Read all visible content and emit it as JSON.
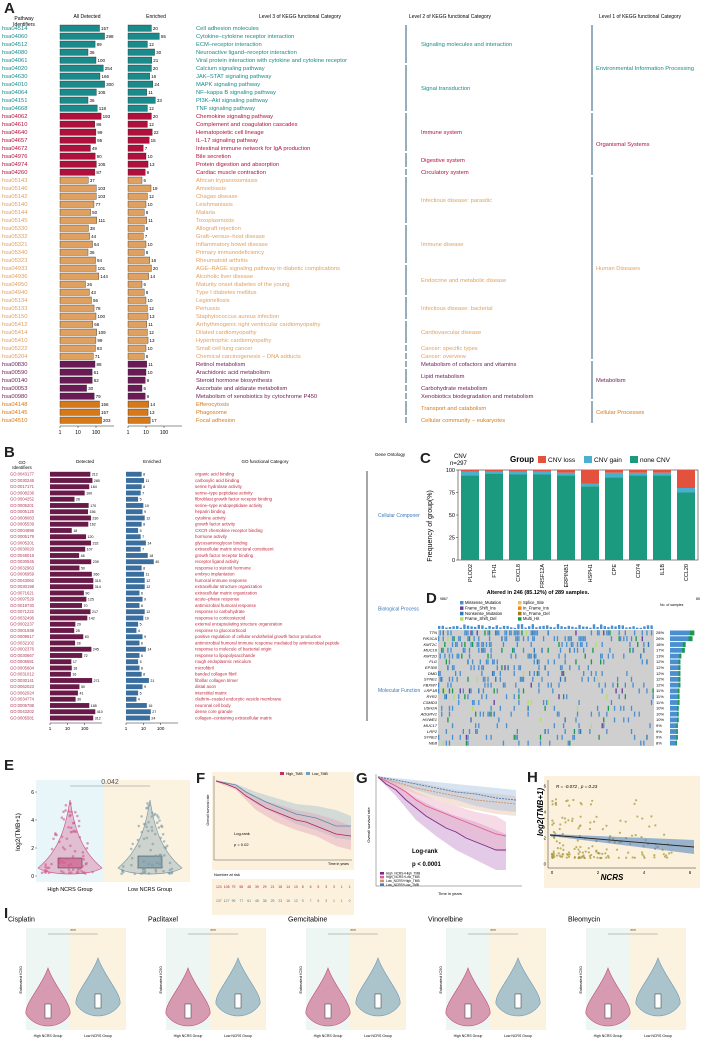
{
  "panel_labels": {
    "A": "A",
    "B": "B",
    "C": "C",
    "D": "D",
    "E": "E",
    "F": "F",
    "G": "G",
    "H": "H",
    "I": "I"
  },
  "panelA": {
    "h_ids": "Pathway\nIdentifiers",
    "h_all": "All Detected",
    "h_enr": "Enriched",
    "h_l3": "Level 3 of KEGG functional Category",
    "h_l2": "Level 2 of KEGG functional Category",
    "h_l1": "Level 1 of KEGG functional Category",
    "axis_ticks": [
      "1",
      "10",
      "100",
      "1",
      "10",
      "100"
    ],
    "colors": {
      "env": "#1a8a8a",
      "org": "#b0103c",
      "hum": "#e0a060",
      "met": "#6a1a55",
      "cell": "#d5791a"
    },
    "rows": [
      {
        "id": "hsa04514",
        "all": 157,
        "enr": 20,
        "name": "Cell adhesion molecules",
        "g": "env"
      },
      {
        "id": "hsa04060",
        "all": 298,
        "enr": 55,
        "name": "Cytokine–cytokine receptor interaction",
        "g": "env"
      },
      {
        "id": "hsa04512",
        "all": 89,
        "enr": 12,
        "name": "ECM–receptor interaction",
        "g": "env"
      },
      {
        "id": "hsa04080",
        "all": 36,
        "enr": 30,
        "name": "Neuroactive ligand–receptor interaction",
        "g": "env"
      },
      {
        "id": "hsa04061",
        "all": 100,
        "enr": 21,
        "name": "Viral protein interaction with cytokine and cytokine receptor",
        "g": "env"
      },
      {
        "id": "hsa04020",
        "all": 254,
        "enr": 20,
        "name": "Calcium signaling pathway",
        "g": "env"
      },
      {
        "id": "hsa04630",
        "all": 166,
        "enr": 16,
        "name": "JAK–STAT signaling pathway",
        "g": "env"
      },
      {
        "id": "hsa04010",
        "all": 300,
        "enr": 24,
        "name": "MAPK signaling pathway",
        "g": "env"
      },
      {
        "id": "hsa04064",
        "all": 105,
        "enr": 11,
        "name": "NF–kappa B signaling pathway",
        "g": "env"
      },
      {
        "id": "hsa04151",
        "all": 36,
        "enr": 33,
        "name": "PI3K–Akt signaling pathway",
        "g": "env"
      },
      {
        "id": "hsa04668",
        "all": 118,
        "enr": 12,
        "name": "TNF signaling pathway",
        "g": "env"
      },
      {
        "id": "hsa04062",
        "all": 193,
        "enr": 20,
        "name": "Chemokine signaling pathway",
        "g": "org"
      },
      {
        "id": "hsa04610",
        "all": 86,
        "enr": 12,
        "name": "Complement and coagulation cascades",
        "g": "org"
      },
      {
        "id": "hsa04640",
        "all": 99,
        "enr": 22,
        "name": "Hematopoietic cell lineage",
        "g": "org"
      },
      {
        "id": "hsa04657",
        "all": 95,
        "enr": 15,
        "name": "IL–17 signaling pathway",
        "g": "org"
      },
      {
        "id": "hsa04672",
        "all": 49,
        "enr": 7,
        "name": "Intestinal immune network for IgA production",
        "g": "org"
      },
      {
        "id": "hsa04976",
        "all": 90,
        "enr": 10,
        "name": "Bile secretion",
        "g": "org"
      },
      {
        "id": "hsa04974",
        "all": 105,
        "enr": 13,
        "name": "Protein digestion and absorption",
        "g": "org"
      },
      {
        "id": "hsa04260",
        "all": 87,
        "enr": 9,
        "name": "Cardiac muscle contraction",
        "g": "org"
      },
      {
        "id": "hsa05143",
        "all": 37,
        "enr": 6,
        "name": "African trypanosomiasis",
        "g": "hum"
      },
      {
        "id": "hsa05146",
        "all": 103,
        "enr": 19,
        "name": "Amoebiasis",
        "g": "hum"
      },
      {
        "id": "hsa05142",
        "all": 103,
        "enr": 12,
        "name": "Chagas disease",
        "g": "hum"
      },
      {
        "id": "hsa05140",
        "all": 77,
        "enr": 10,
        "name": "Leishmaniasis",
        "g": "hum"
      },
      {
        "id": "hsa05144",
        "all": 50,
        "enr": 8,
        "name": "Malaria",
        "g": "hum"
      },
      {
        "id": "hsa05145",
        "all": 111,
        "enr": 11,
        "name": "Toxoplasmosis",
        "g": "hum"
      },
      {
        "id": "hsa05330",
        "all": 38,
        "enr": 8,
        "name": "Allograft rejection",
        "g": "hum"
      },
      {
        "id": "hsa05332",
        "all": 44,
        "enr": 7,
        "name": "Graft–versus–host disease",
        "g": "hum"
      },
      {
        "id": "hsa05321",
        "all": 64,
        "enr": 10,
        "name": "Inflammatory bowel disease",
        "g": "hum"
      },
      {
        "id": "hsa05340",
        "all": 36,
        "enr": 8,
        "name": "Primary immunodeficiency",
        "g": "hum"
      },
      {
        "id": "hsa05323",
        "all": 94,
        "enr": 16,
        "name": "Rheumatoid arthritis",
        "g": "hum"
      },
      {
        "id": "hsa04933",
        "all": 101,
        "enr": 20,
        "name": "AGE–RAGE signaling pathway in diabetic complications",
        "g": "hum"
      },
      {
        "id": "hsa04936",
        "all": 144,
        "enr": 14,
        "name": "Alcoholic liver disease",
        "g": "hum"
      },
      {
        "id": "hsa04950",
        "all": 26,
        "enr": 6,
        "name": "Maturity onset diabetes of the young",
        "g": "hum"
      },
      {
        "id": "hsa04940",
        "all": 43,
        "enr": 8,
        "name": "Type I diabetes mellitus",
        "g": "hum"
      },
      {
        "id": "hsa05134",
        "all": 56,
        "enr": 10,
        "name": "Legionellosis",
        "g": "hum"
      },
      {
        "id": "hsa05133",
        "all": 78,
        "enr": 12,
        "name": "Pertussis",
        "g": "hum"
      },
      {
        "id": "hsa05150",
        "all": 100,
        "enr": 13,
        "name": "Staphylococcus aureus infection",
        "g": "hum"
      },
      {
        "id": "hsa05412",
        "all": 66,
        "enr": 11,
        "name": "Arrhythmogenic right ventricular cardiomyopathy",
        "g": "hum"
      },
      {
        "id": "hsa05414",
        "all": 109,
        "enr": 12,
        "name": "Dilated cardiomyopathy",
        "g": "hum"
      },
      {
        "id": "hsa05410",
        "all": 99,
        "enr": 13,
        "name": "Hypertrophic cardiomyopathy",
        "g": "hum"
      },
      {
        "id": "hsa05222",
        "all": 93,
        "enr": 10,
        "name": "Small cell lung cancer",
        "g": "hum"
      },
      {
        "id": "hsa05204",
        "all": 71,
        "enr": 8,
        "name": "Chemical carcinogenesis – DNA adducts",
        "g": "hum"
      },
      {
        "id": "hsa00830",
        "all": 88,
        "enr": 11,
        "name": "Retinol metabolism",
        "g": "met"
      },
      {
        "id": "hsa00590",
        "all": 61,
        "enr": 10,
        "name": "Arachidonic acid metabolism",
        "g": "met"
      },
      {
        "id": "hsa00140",
        "all": 62,
        "enr": 9,
        "name": "Steroid hormone biosynthesis",
        "g": "met"
      },
      {
        "id": "hsa00053",
        "all": 30,
        "enr": 6,
        "name": "Ascorbate and aldarate metabolism",
        "g": "met"
      },
      {
        "id": "hsa00980",
        "all": 79,
        "enr": 9,
        "name": "Metabolism of xenobiotics by cytochrome P450",
        "g": "met"
      },
      {
        "id": "hsa04148",
        "all": 156,
        "enr": 14,
        "name": "Efferocytosis",
        "g": "cell"
      },
      {
        "id": "hsa04145",
        "all": 157,
        "enr": 13,
        "name": "Phagosome",
        "g": "cell"
      },
      {
        "id": "hsa04510",
        "all": 203,
        "enr": 17,
        "name": "Focal adhesion",
        "g": "cell"
      }
    ],
    "level2": [
      {
        "label": "Signaling molecules and interaction",
        "from": 0,
        "to": 4,
        "g": "env"
      },
      {
        "label": "Signal transduction",
        "from": 5,
        "to": 10,
        "g": "env"
      },
      {
        "label": "Immune system",
        "from": 11,
        "to": 15,
        "g": "org"
      },
      {
        "label": "Digestive system",
        "from": 16,
        "to": 17,
        "g": "org"
      },
      {
        "label": "Circulatory system",
        "from": 18,
        "to": 18,
        "g": "org"
      },
      {
        "label": "Infectious disease: parasitic",
        "from": 19,
        "to": 24,
        "g": "hum"
      },
      {
        "label": "Immune disease",
        "from": 25,
        "to": 29,
        "g": "hum"
      },
      {
        "label": "Endocrine and metabolic disease",
        "from": 30,
        "to": 33,
        "g": "hum"
      },
      {
        "label": "Infectious disease: bacterial",
        "from": 34,
        "to": 36,
        "g": "hum"
      },
      {
        "label": "Cardiovascular disease",
        "from": 37,
        "to": 39,
        "g": "hum"
      },
      {
        "label": "Cancer: specific types",
        "from": 40,
        "to": 40,
        "g": "hum"
      },
      {
        "label": "Cancer: overview",
        "from": 41,
        "to": 41,
        "g": "hum"
      },
      {
        "label": "Metabolism of cofactors and vitamins",
        "from": 42,
        "to": 42,
        "g": "met"
      },
      {
        "label": "Lipid metabolism",
        "from": 43,
        "to": 44,
        "g": "met"
      },
      {
        "label": "Carbohydrate metabolism",
        "from": 45,
        "to": 45,
        "g": "met"
      },
      {
        "label": "Xenobiotics biodegradation and metabolism",
        "from": 46,
        "to": 46,
        "g": "met"
      },
      {
        "label": "Transport and catabolism",
        "from": 47,
        "to": 48,
        "g": "cell"
      },
      {
        "label": "Cellular community – eukaryotes",
        "from": 49,
        "to": 49,
        "g": "cell"
      }
    ],
    "level1": [
      {
        "label": "Environmental Information Processing",
        "from": 0,
        "to": 10,
        "g": "env"
      },
      {
        "label": "Organismal Systems",
        "from": 11,
        "to": 18,
        "g": "org"
      },
      {
        "label": "Human Diseases",
        "from": 19,
        "to": 41,
        "g": "hum"
      },
      {
        "label": "Metabolism",
        "from": 42,
        "to": 46,
        "g": "met"
      },
      {
        "label": "Cellular Processes",
        "from": 47,
        "to": 49,
        "g": "cell"
      }
    ]
  },
  "panelB": {
    "h_ids": "GO\nIdentifiers",
    "h_det": "Detected",
    "h_enr": "Enriched",
    "h_cat": "GO functional Category",
    "h_onto": "Gene Ontology",
    "axis_ticks": [
      "1",
      "10",
      "100",
      "1",
      "10",
      "100"
    ],
    "colors": {
      "bar1": "#6a1a48",
      "bar2": "#3a6e9e",
      "text": "#c0283c",
      "onto": "#3a7ab8"
    },
    "ids": [
      "GO:0043177",
      "GO:0030246",
      "GO:0017171",
      "GO:0008236",
      "GO:0004252",
      "GO:0005201",
      "GO:0005125",
      "GO:0008083",
      "GO:0005539",
      "GO:0004896",
      "GO:0005179",
      "GO:0005201",
      "GO:0030020",
      "GO:0048018",
      "GO:0030545",
      "GO:0032963",
      "GO:0006959",
      "GO:0043062",
      "GO:0030198",
      "GO:0071621",
      "GO:0097529",
      "GO:0019730",
      "GO:0071222",
      "GO:0032496",
      "GO:0002237",
      "GO:0001938",
      "GO:0009617",
      "GO:0032102",
      "GO:0002376",
      "GO:0030667",
      "GO:0005581",
      "GO:0005604",
      "GO:0031012",
      "GO:0030141",
      "GO:0062023",
      "GO:0062024",
      "GO:0034774",
      "GO:0005788",
      "GO:0043202",
      "GO:0005581"
    ],
    "det": [
      212,
      280,
      184,
      100,
      26,
      170,
      156,
      230,
      162,
      18,
      120,
      232,
      107,
      48,
      239,
      50,
      260,
      315,
      314,
      90,
      125,
      70,
      217,
      142,
      29,
      25,
      83,
      28,
      245,
      72,
      17,
      18,
      16,
      271,
      50,
      41,
      30,
      185,
      410,
      312
    ],
    "enr": [
      8,
      11,
      8,
      7,
      5,
      10,
      9,
      12,
      8,
      5,
      7,
      14,
      7,
      18,
      40,
      8,
      11,
      12,
      12,
      6,
      9,
      6,
      12,
      10,
      5,
      4,
      9,
      6,
      14,
      6,
      5,
      6,
      8,
      21,
      9,
      5,
      4,
      16,
      27,
      24
    ],
    "names": [
      "organic acid binding",
      "carboxylic acid binding",
      "serine hydrolase activity",
      "serine–type peptidase activity",
      "fibroblast growth factor receptor binding",
      "serine–type endopeptidase activity",
      "heparin binding",
      "cytokine activity",
      "growth factor activity",
      "CXCR chemokine receptor binding",
      "hormone activity",
      "glycosaminoglycan binding",
      "extracellular matrix structural constituent",
      "growth factor receptor binding",
      "receptor ligand activity",
      "response to steroid hormone",
      "embryo implantation",
      "humoral immune response",
      "extracellular structure organization",
      "extracellular matrix organization",
      "acute–phase response",
      "antimicrobial humoral response",
      "response to carbohydrate",
      "response to corticosteroid",
      "external encapsulating structure organization",
      "response to glucocorticoid",
      "positive regulation of cellular endothelial growth factor production",
      "antimicrobial humoral immune response mediated by antimicrobial peptide",
      "response to molecule of bacterial origin",
      "response to lipopolysaccharide",
      "rough endoplasmic reticulum",
      "microfibril",
      "banded collagen fibril",
      "fibrillar collagen trimer",
      "distal axon",
      "interstitial matrix",
      "clathrin–coated endocytic vesicle membrane",
      "neuronal cell body",
      "dense core granule",
      "collagen–containing extracellular matrix"
    ],
    "ontology": [
      {
        "label": "Cellular Component",
        "from": 0,
        "to": 13
      },
      {
        "label": "Biological Process",
        "from": 14,
        "to": 29
      },
      {
        "label": "Molecular Function",
        "from": 30,
        "to": 39
      }
    ]
  },
  "panelC": {
    "cnv_label": "CNV",
    "n_label": "n=297",
    "legend_title": "Group",
    "legend": [
      "CNV loss",
      "CNV gain",
      "none CNV"
    ],
    "colors": [
      "#e4523e",
      "#4ab0d0",
      "#1c9a80"
    ],
    "ylabel": "Frequency of group(%)",
    "yticks": [
      "100",
      "75",
      "50",
      "25",
      "0"
    ],
    "chart_data": {
      "type": "bar",
      "categories": [
        "PLOD2",
        "FTH1",
        "CXCL8",
        "TNFRSF12A",
        "SERPINB1",
        "HSPH1",
        "CPE",
        "CD74",
        "IL1B",
        "CCL20"
      ],
      "series": [
        {
          "name": "none CNV",
          "values": [
            94,
            96,
            95,
            95,
            94,
            82,
            92,
            94,
            94,
            75
          ]
        },
        {
          "name": "CNV gain",
          "values": [
            4,
            2,
            3,
            3,
            3,
            3,
            5,
            3,
            3,
            5
          ]
        },
        {
          "name": "CNV loss",
          "values": [
            2,
            2,
            2,
            2,
            3,
            15,
            3,
            3,
            3,
            20
          ]
        }
      ],
      "ylim": [
        0,
        100
      ]
    }
  },
  "panelD": {
    "title": "Altered in 246 (85.12%) of 289 samples.",
    "tmb_label": "9867",
    "no_samples": "No. of samples",
    "axis_max": "85",
    "legend": [
      "Missense_Mutation",
      "Splice_Site",
      "Frame_Shift_Ins",
      "In_Frame_Ins",
      "Nonsense_Mutation",
      "In_Frame_Del",
      "Frame_Shift_Del",
      "Multi_Hit"
    ],
    "legend_colors": [
      "#4a90d0",
      "#e8c45a",
      "#6a3d9a",
      "#ff7f00",
      "#2c7bb6",
      "#a6761d",
      "#b3de69",
      "#1a9a48"
    ],
    "genes": [
      "TTN",
      "PIK3CA",
      "KMT2C",
      "MUC16",
      "KMT2D",
      "FLG",
      "EP300",
      "DMD",
      "SYNE1",
      "FBXW7",
      "LRP1B",
      "RYR2",
      "CSMD3",
      "USH2A",
      "ADGRV1",
      "HUWE1",
      "MUC17",
      "LRP2",
      "SYNE2",
      "NEB"
    ],
    "pct": [
      "28%",
      "26%",
      "18%",
      "17%",
      "13%",
      "12%",
      "12%",
      "12%",
      "12%",
      "12%",
      "11%",
      "11%",
      "11%",
      "10%",
      "10%",
      "10%",
      "9%",
      "9%",
      "9%",
      "8%"
    ],
    "pct_values": [
      28,
      26,
      18,
      17,
      13,
      12,
      12,
      12,
      12,
      12,
      11,
      11,
      11,
      10,
      10,
      10,
      9,
      9,
      9,
      8
    ]
  },
  "panelE": {
    "pvalue": "0.042",
    "ylabel": "log2(TMB+1)",
    "groups": [
      "High NCRS Group",
      "Low NCRS Group"
    ],
    "yticks": [
      "6",
      "4",
      "2",
      "0"
    ],
    "colors": [
      "#d05a8a",
      "#7a9aa8"
    ],
    "bg": [
      "#e8f6fa",
      "#fbf3e0"
    ]
  },
  "panelF": {
    "legend": [
      "High_TMB",
      "Low_TMB"
    ],
    "ylabel": "Overall survival rate",
    "xlabel": "Time in years",
    "logrank": "Log-rank",
    "pval": "p = 0.02",
    "risk_title": "Number at risk",
    "risk_high": [
      "124",
      "108",
      "79",
      "58",
      "48",
      "39",
      "29",
      "21",
      "18",
      "14",
      "10",
      "8",
      "6",
      "5",
      "3",
      "3",
      "1",
      "1"
    ],
    "risk_low": [
      "137",
      "127",
      "99",
      "77",
      "61",
      "48",
      "38",
      "29",
      "23",
      "16",
      "12",
      "9",
      "7",
      "5",
      "3",
      "1",
      "1",
      "0"
    ]
  },
  "panelG": {
    "ylabel": "Overall survival rate",
    "xlabel": "Time in years",
    "logrank": "Log-rank",
    "pval": "p < 0.0001",
    "legend": [
      "High_NCRS+High_TMB",
      "High_NCRS+Low_TMB",
      "Low_NCRS+High_TMB",
      "Low_NCRS+Low_TMB"
    ],
    "colors": [
      "#7a2a8a",
      "#e05a90",
      "#d0906a",
      "#4a7ab8"
    ]
  },
  "panelH": {
    "stat": "R = -0.072 , p = 0.23",
    "ylabel": "log2(TMB+1)",
    "xlabel": "NCRS",
    "xticks": [
      "0",
      "2",
      "4",
      "6"
    ],
    "yticks": [
      "6",
      "4",
      "2",
      "0"
    ]
  },
  "panelI": {
    "ylabel": "Estimated IC50",
    "groups": [
      "High NCRS Group",
      "Low NCRS Group"
    ],
    "drugs": [
      "Cisplatin",
      "Paclitaxel",
      "Gemcitabine",
      "Vinorelbine",
      "Bleomycin"
    ],
    "pvals": [
      "***",
      "***",
      "***",
      "***",
      "***"
    ]
  }
}
